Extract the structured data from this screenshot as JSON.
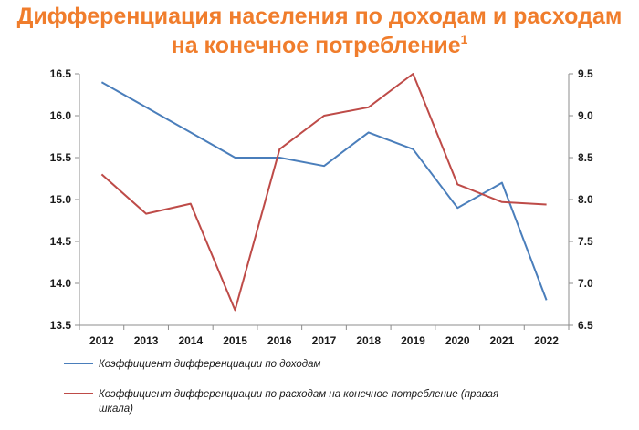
{
  "title": {
    "line1": "Дифференциация населения по доходам и расходам",
    "line2": "на конечное потребление",
    "footnote": "1"
  },
  "chart_data": {
    "type": "line",
    "x": [
      "2012",
      "2013",
      "2014",
      "2015",
      "2016",
      "2017",
      "2018",
      "2019",
      "2020",
      "2021",
      "2022"
    ],
    "y_left": {
      "lim": [
        13.5,
        16.5
      ],
      "ticks": [
        "13.5",
        "14.0",
        "14.5",
        "15.0",
        "15.5",
        "16.0",
        "16.5"
      ]
    },
    "y_right": {
      "lim": [
        6.5,
        9.5
      ],
      "ticks": [
        "6.5",
        "7.0",
        "7.5",
        "8.0",
        "8.5",
        "9.0",
        "9.5"
      ]
    },
    "grid": false,
    "legend_position": "bottom",
    "series": [
      {
        "name": "Коэффициент дифференциации по доходам",
        "axis": "left",
        "color": "#4a7ebb",
        "values": [
          16.4,
          16.1,
          15.8,
          15.5,
          15.5,
          15.4,
          15.8,
          15.6,
          14.9,
          15.2,
          13.8
        ]
      },
      {
        "name": "Коэффициент дифференциации по расходам на конечное потребление (правая шкала)",
        "name_lines": [
          "Коэффициент дифференциации по расходам на конечное потребление (правая",
          "шкала)"
        ],
        "axis": "right",
        "color": "#be4b48",
        "values": [
          8.3,
          7.83,
          7.95,
          6.68,
          8.6,
          9.0,
          9.1,
          9.5,
          8.18,
          7.97,
          7.94
        ]
      }
    ]
  }
}
